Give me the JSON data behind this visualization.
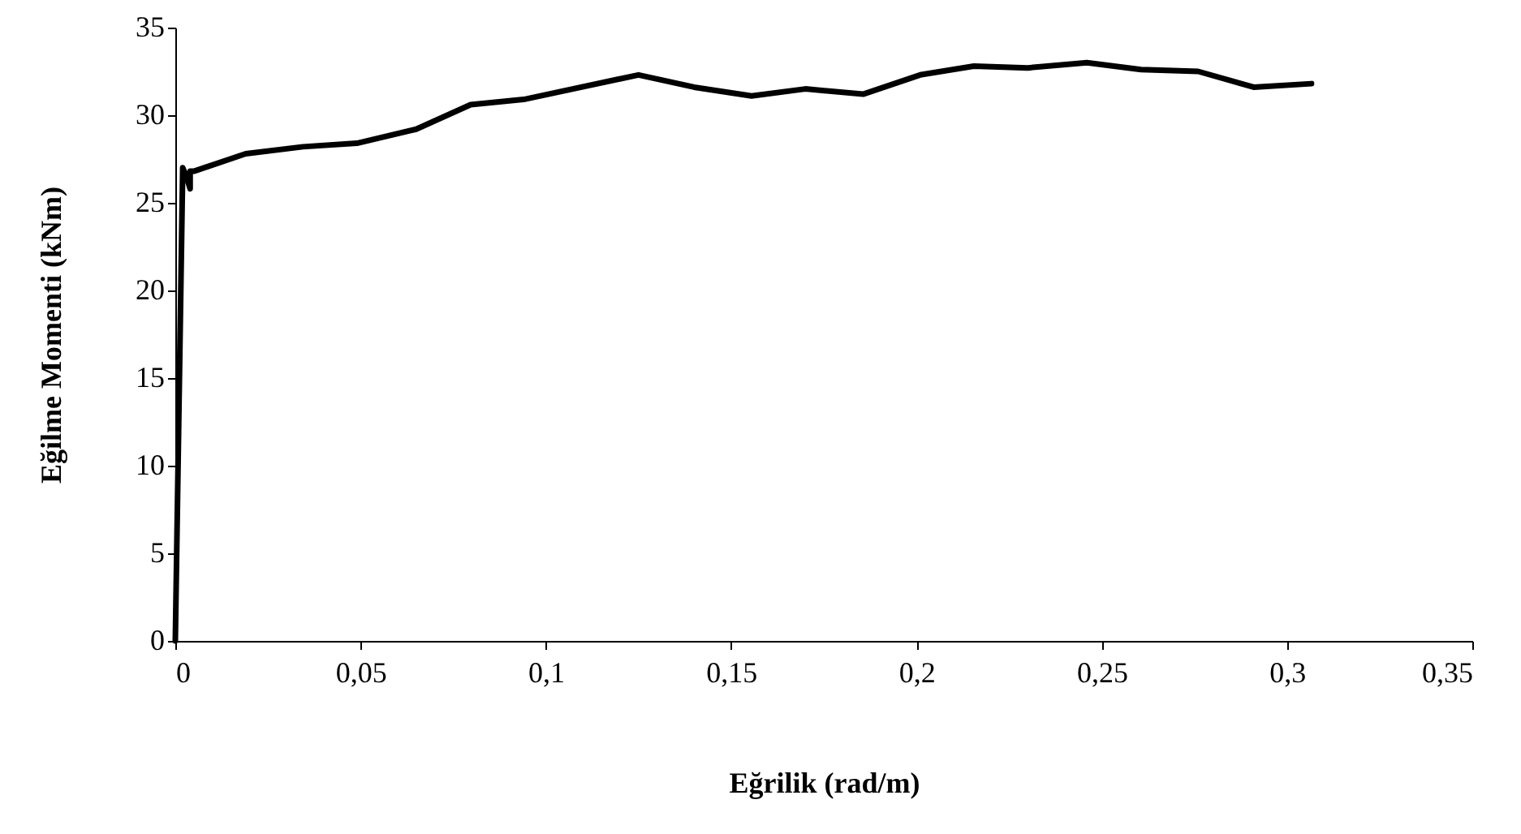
{
  "chart_data": {
    "type": "line",
    "xlabel": "Eğrilik (rad/m)",
    "ylabel": "Eğilme Momenti (kNm)",
    "x": [
      0,
      0.002,
      0.003,
      0.004,
      0.004,
      0.005,
      0.019,
      0.0345,
      0.049,
      0.065,
      0.0797,
      0.094,
      0.125,
      0.14,
      0.1555,
      0.17,
      0.1856,
      0.201,
      0.2155,
      0.23,
      0.246,
      0.2606,
      0.276,
      0.291,
      0.3066
    ],
    "series": [
      {
        "color": "#000000",
        "values": [
          0,
          27,
          26.5,
          25.8,
          26.8,
          26.8,
          27.8,
          28.2,
          28.4,
          29.2,
          30.6,
          30.9,
          32.3,
          31.6,
          31.1,
          31.5,
          31.2,
          32.3,
          32.8,
          32.7,
          33.0,
          32.6,
          32.5,
          31.6,
          31.8
        ]
      }
    ],
    "xlim": [
      0,
      0.35
    ],
    "ylim": [
      0,
      35
    ],
    "xticks": [
      0,
      {
        "value": 0.05,
        "label": "0,05"
      },
      {
        "value": 0.1,
        "label": "0,1"
      },
      {
        "value": 0.15,
        "label": "0,15"
      },
      {
        "value": 0.2,
        "label": "0,2"
      },
      {
        "value": 0.25,
        "label": "0,25"
      },
      {
        "value": 0.3,
        "label": "0,3"
      },
      {
        "value": 0.35,
        "label": "0,35"
      }
    ],
    "yticks": [
      0,
      5,
      10,
      15,
      20,
      25,
      30,
      35
    ],
    "grid": false,
    "marker": "none",
    "line_style": "solid"
  }
}
